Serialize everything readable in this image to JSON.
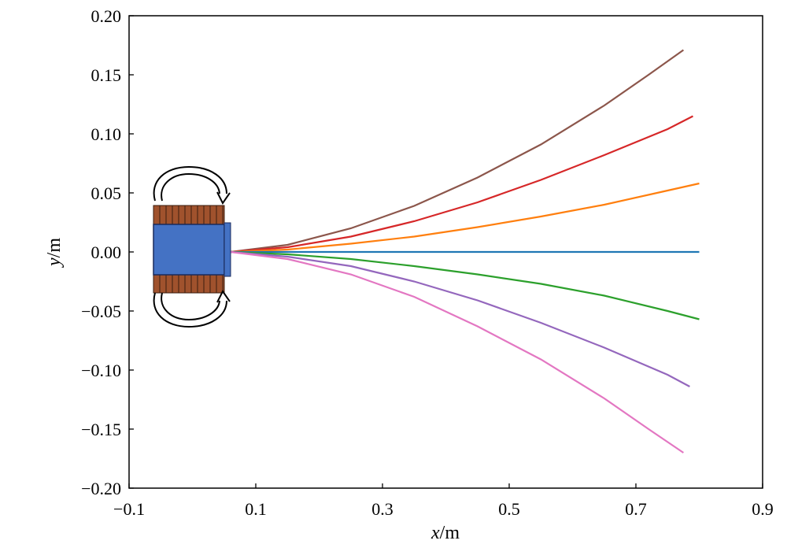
{
  "chart_data": {
    "type": "line",
    "title": "",
    "xlabel": {
      "var": "x",
      "unit": "/m"
    },
    "ylabel": {
      "var": "y",
      "unit": "/m"
    },
    "xlim": [
      -0.1,
      0.9
    ],
    "ylim": [
      -0.2,
      0.2
    ],
    "xticks": [
      -0.1,
      0.1,
      0.3,
      0.5,
      0.7,
      0.9
    ],
    "yticks": [
      -0.2,
      -0.15,
      -0.1,
      -0.05,
      0.0,
      0.05,
      0.1,
      0.15,
      0.2
    ],
    "xtick_labels": [
      "−0.1",
      "0.1",
      "0.3",
      "0.5",
      "0.7",
      "0.9"
    ],
    "ytick_labels": [
      "−0.20",
      "−0.15",
      "−0.10",
      "−0.05",
      "0.00",
      "0.05",
      "0.10",
      "0.15",
      "0.20"
    ],
    "grid": false,
    "legend": "none",
    "series": [
      {
        "color": "#8c564b",
        "x": [
          0.06,
          0.15,
          0.25,
          0.35,
          0.45,
          0.55,
          0.65,
          0.72,
          0.775
        ],
        "y": [
          0.0,
          0.006,
          0.02,
          0.039,
          0.063,
          0.091,
          0.124,
          0.15,
          0.171
        ]
      },
      {
        "color": "#d62728",
        "x": [
          0.06,
          0.15,
          0.25,
          0.35,
          0.45,
          0.55,
          0.65,
          0.75,
          0.79
        ],
        "y": [
          0.0,
          0.004,
          0.013,
          0.026,
          0.042,
          0.061,
          0.082,
          0.104,
          0.115
        ]
      },
      {
        "color": "#ff7f0e",
        "x": [
          0.06,
          0.15,
          0.25,
          0.35,
          0.45,
          0.55,
          0.65,
          0.75,
          0.8
        ],
        "y": [
          0.0,
          0.002,
          0.007,
          0.013,
          0.021,
          0.03,
          0.04,
          0.052,
          0.058
        ]
      },
      {
        "color": "#1f77b4",
        "x": [
          0.06,
          0.8
        ],
        "y": [
          0.0,
          0.0
        ]
      },
      {
        "color": "#2ca02c",
        "x": [
          0.06,
          0.15,
          0.25,
          0.35,
          0.45,
          0.55,
          0.65,
          0.75,
          0.8
        ],
        "y": [
          0.0,
          -0.002,
          -0.006,
          -0.012,
          -0.019,
          -0.027,
          -0.037,
          -0.05,
          -0.057
        ]
      },
      {
        "color": "#9467bd",
        "x": [
          0.06,
          0.15,
          0.25,
          0.35,
          0.45,
          0.55,
          0.65,
          0.75,
          0.785
        ],
        "y": [
          0.0,
          -0.004,
          -0.012,
          -0.025,
          -0.041,
          -0.06,
          -0.081,
          -0.104,
          -0.114
        ]
      },
      {
        "color": "#e377c2",
        "x": [
          0.06,
          0.15,
          0.25,
          0.35,
          0.45,
          0.55,
          0.65,
          0.72,
          0.775
        ],
        "y": [
          0.0,
          -0.006,
          -0.019,
          -0.038,
          -0.063,
          -0.091,
          -0.124,
          -0.15,
          -0.17
        ]
      }
    ]
  },
  "inset": {
    "coil_color": "#a0522d",
    "core_color": "#4472c4"
  }
}
